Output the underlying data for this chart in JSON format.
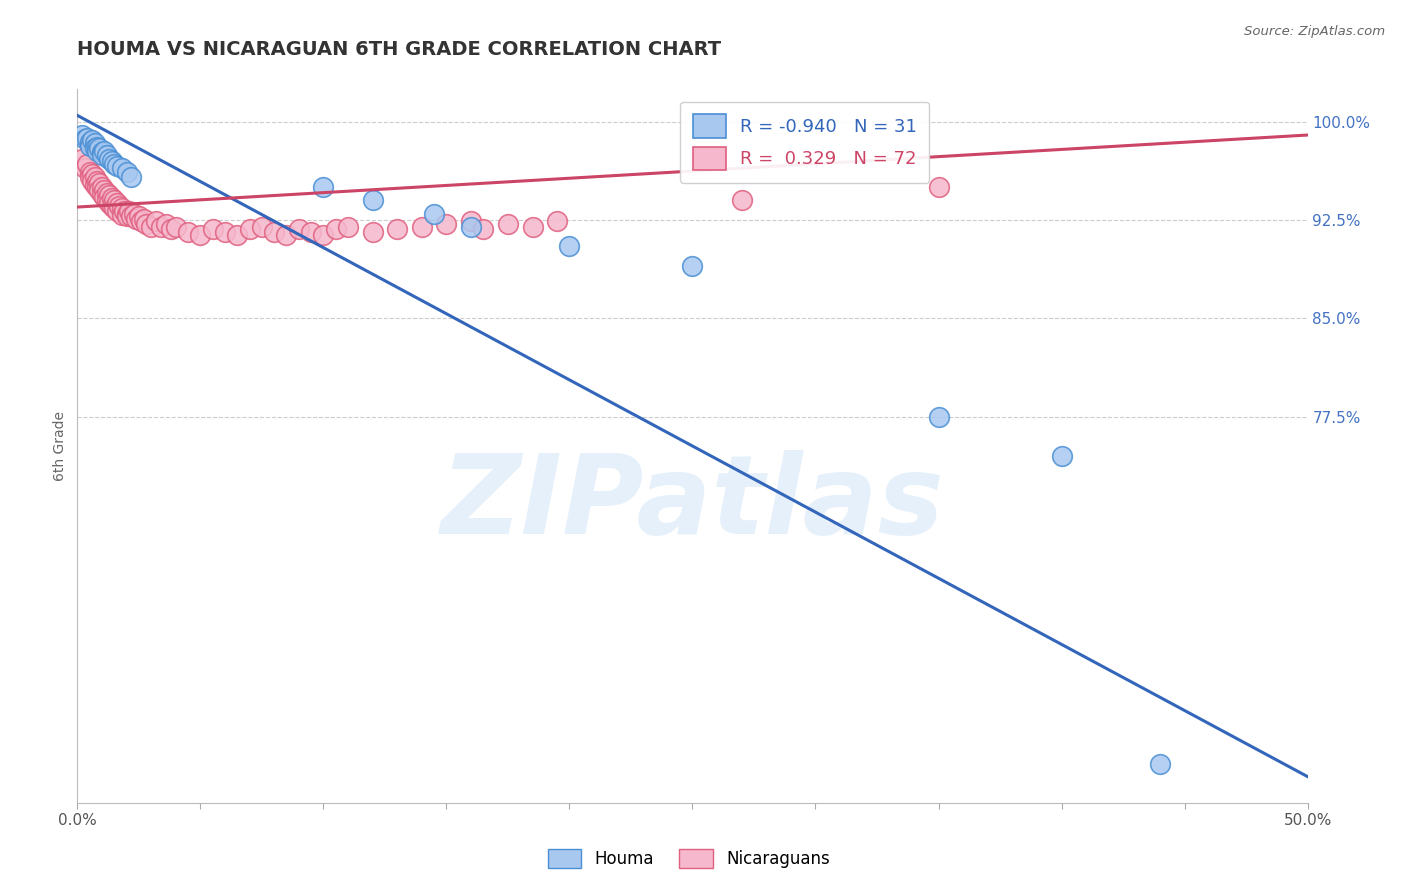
{
  "title": "HOUMA VS NICARAGUAN 6TH GRADE CORRELATION CHART",
  "source": "Source: ZipAtlas.com",
  "ylabel": "6th Grade",
  "xlim": [
    0.0,
    0.5
  ],
  "ylim": [
    0.48,
    1.025
  ],
  "houma_r": -0.94,
  "houma_n": 31,
  "nicaraguan_r": 0.329,
  "nicaraguan_n": 72,
  "houma_color": "#a8c8f0",
  "houma_edge_color": "#4a8fd4",
  "houma_line_color": "#3366bb",
  "nicaraguan_color": "#f5b8cc",
  "nicaraguan_edge_color": "#e06080",
  "nicaraguan_line_color": "#cc4466",
  "background_color": "#ffffff",
  "grid_color": "#cccccc",
  "watermark": "ZIPatlas",
  "houma_points_x": [
    0.002,
    0.003,
    0.004,
    0.005,
    0.005,
    0.006,
    0.007,
    0.007,
    0.008,
    0.008,
    0.009,
    0.01,
    0.01,
    0.011,
    0.012,
    0.013,
    0.014,
    0.015,
    0.016,
    0.018,
    0.02,
    0.022,
    0.1,
    0.12,
    0.145,
    0.16,
    0.2,
    0.25,
    0.35,
    0.4,
    0.44
  ],
  "houma_points_y": [
    0.99,
    0.987,
    0.988,
    0.985,
    0.982,
    0.986,
    0.984,
    0.98,
    0.981,
    0.978,
    0.98,
    0.977,
    0.975,
    0.978,
    0.975,
    0.972,
    0.97,
    0.968,
    0.966,
    0.965,
    0.962,
    0.958,
    0.95,
    0.94,
    0.93,
    0.92,
    0.905,
    0.89,
    0.775,
    0.745,
    0.51
  ],
  "nicaraguan_points_x": [
    0.002,
    0.003,
    0.004,
    0.005,
    0.005,
    0.006,
    0.006,
    0.007,
    0.007,
    0.008,
    0.008,
    0.009,
    0.009,
    0.01,
    0.01,
    0.011,
    0.011,
    0.012,
    0.012,
    0.013,
    0.013,
    0.014,
    0.014,
    0.015,
    0.015,
    0.016,
    0.016,
    0.017,
    0.018,
    0.018,
    0.019,
    0.02,
    0.02,
    0.021,
    0.022,
    0.023,
    0.024,
    0.025,
    0.026,
    0.027,
    0.028,
    0.03,
    0.032,
    0.034,
    0.036,
    0.038,
    0.04,
    0.045,
    0.05,
    0.055,
    0.06,
    0.065,
    0.07,
    0.075,
    0.08,
    0.085,
    0.09,
    0.095,
    0.1,
    0.105,
    0.11,
    0.12,
    0.13,
    0.14,
    0.15,
    0.16,
    0.165,
    0.175,
    0.185,
    0.195,
    0.27,
    0.35
  ],
  "nicaraguan_points_y": [
    0.972,
    0.965,
    0.968,
    0.962,
    0.958,
    0.96,
    0.955,
    0.958,
    0.952,
    0.955,
    0.95,
    0.953,
    0.948,
    0.95,
    0.945,
    0.948,
    0.943,
    0.946,
    0.94,
    0.944,
    0.938,
    0.942,
    0.936,
    0.94,
    0.934,
    0.938,
    0.932,
    0.936,
    0.934,
    0.929,
    0.932,
    0.93,
    0.928,
    0.932,
    0.928,
    0.93,
    0.926,
    0.928,
    0.924,
    0.926,
    0.922,
    0.92,
    0.924,
    0.92,
    0.922,
    0.918,
    0.92,
    0.916,
    0.914,
    0.918,
    0.916,
    0.914,
    0.918,
    0.92,
    0.916,
    0.914,
    0.918,
    0.916,
    0.914,
    0.918,
    0.92,
    0.916,
    0.918,
    0.92,
    0.922,
    0.924,
    0.918,
    0.922,
    0.92,
    0.924,
    0.94,
    0.95
  ],
  "houma_trend_x": [
    0.0,
    0.5
  ],
  "houma_trend_y": [
    1.005,
    0.5
  ],
  "nicaraguan_trend_x": [
    0.0,
    0.5
  ],
  "nicaraguan_trend_y": [
    0.935,
    0.99
  ],
  "ytick_positions": [
    1.0,
    0.925,
    0.85,
    0.775
  ],
  "ytick_labels_right": [
    "100.0%",
    "92.5%",
    "85.0%",
    "77.5%"
  ]
}
